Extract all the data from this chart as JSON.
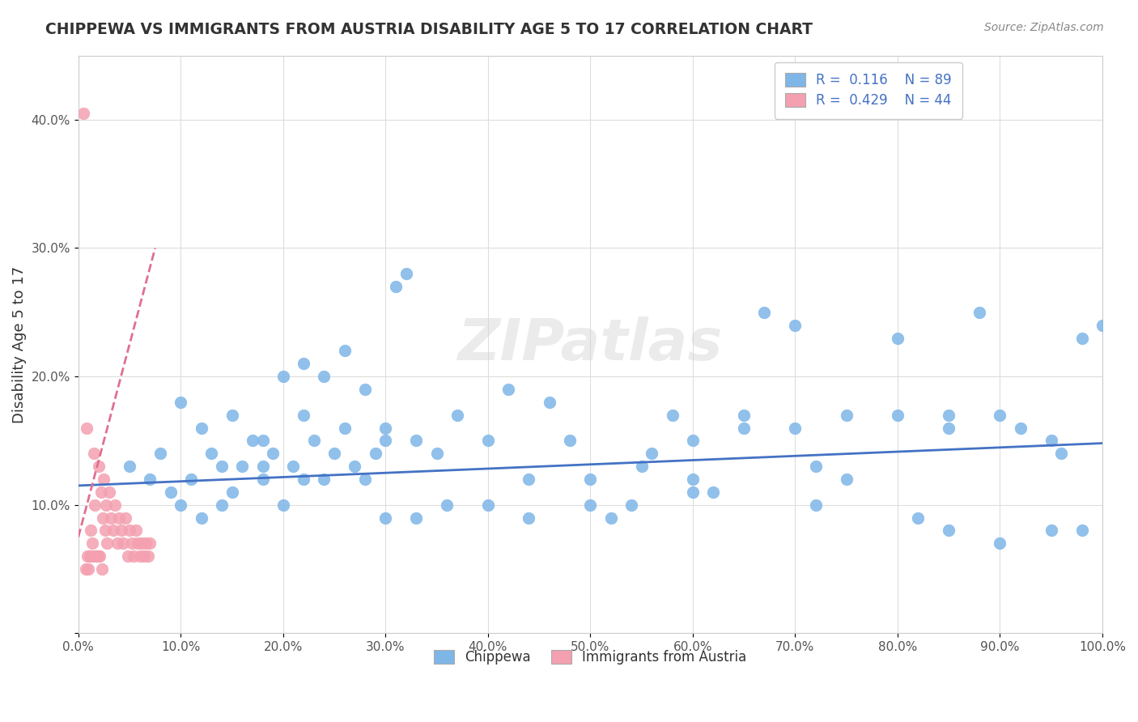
{
  "title": "CHIPPEWA VS IMMIGRANTS FROM AUSTRIA DISABILITY AGE 5 TO 17 CORRELATION CHART",
  "source": "Source: ZipAtlas.com",
  "ylabel": "Disability Age 5 to 17",
  "xlim": [
    0,
    1.0
  ],
  "ylim": [
    0,
    0.45
  ],
  "xticks": [
    0.0,
    0.1,
    0.2,
    0.3,
    0.4,
    0.5,
    0.6,
    0.7,
    0.8,
    0.9,
    1.0
  ],
  "xticklabels": [
    "0.0%",
    "10.0%",
    "20.0%",
    "30.0%",
    "40.0%",
    "50.0%",
    "60.0%",
    "70.0%",
    "80.0%",
    "90.0%",
    "100.0%"
  ],
  "yticks": [
    0.0,
    0.1,
    0.2,
    0.3,
    0.4
  ],
  "yticklabels": [
    "",
    "10.0%",
    "20.0%",
    "30.0%",
    "40.0%"
  ],
  "color_blue": "#7EB6E8",
  "color_pink": "#F4A0B0",
  "line_blue": "#4472C4",
  "line_pink": "#E07090",
  "watermark": "ZIPatlas",
  "blue_x": [
    0.05,
    0.07,
    0.08,
    0.09,
    0.1,
    0.11,
    0.12,
    0.13,
    0.14,
    0.15,
    0.16,
    0.17,
    0.18,
    0.19,
    0.2,
    0.21,
    0.22,
    0.23,
    0.24,
    0.25,
    0.26,
    0.27,
    0.28,
    0.29,
    0.3,
    0.31,
    0.32,
    0.33,
    0.35,
    0.37,
    0.4,
    0.42,
    0.44,
    0.46,
    0.5,
    0.52,
    0.54,
    0.56,
    0.58,
    0.6,
    0.62,
    0.65,
    0.67,
    0.7,
    0.72,
    0.75,
    0.8,
    0.82,
    0.85,
    0.88,
    0.9,
    0.92,
    0.95,
    0.98,
    1.0,
    0.2,
    0.22,
    0.24,
    0.28,
    0.3,
    0.33,
    0.4,
    0.44,
    0.5,
    0.55,
    0.6,
    0.65,
    0.7,
    0.75,
    0.8,
    0.85,
    0.9,
    0.95,
    0.98,
    0.1,
    0.12,
    0.14,
    0.18,
    0.26,
    0.36,
    0.48,
    0.6,
    0.72,
    0.85,
    0.96,
    0.15,
    0.18,
    0.22,
    0.3
  ],
  "blue_y": [
    0.13,
    0.12,
    0.14,
    0.11,
    0.1,
    0.12,
    0.09,
    0.14,
    0.1,
    0.11,
    0.13,
    0.15,
    0.12,
    0.14,
    0.1,
    0.13,
    0.17,
    0.15,
    0.12,
    0.14,
    0.16,
    0.13,
    0.12,
    0.14,
    0.16,
    0.27,
    0.28,
    0.15,
    0.14,
    0.17,
    0.15,
    0.19,
    0.12,
    0.18,
    0.1,
    0.09,
    0.1,
    0.14,
    0.17,
    0.12,
    0.11,
    0.16,
    0.25,
    0.24,
    0.13,
    0.17,
    0.23,
    0.09,
    0.17,
    0.25,
    0.17,
    0.16,
    0.15,
    0.08,
    0.24,
    0.2,
    0.21,
    0.2,
    0.19,
    0.15,
    0.09,
    0.1,
    0.09,
    0.12,
    0.13,
    0.15,
    0.17,
    0.16,
    0.12,
    0.17,
    0.08,
    0.07,
    0.08,
    0.23,
    0.18,
    0.16,
    0.13,
    0.15,
    0.22,
    0.1,
    0.15,
    0.11,
    0.1,
    0.16,
    0.14,
    0.17,
    0.13,
    0.12,
    0.09
  ],
  "pink_x": [
    0.005,
    0.007,
    0.008,
    0.009,
    0.01,
    0.011,
    0.012,
    0.013,
    0.014,
    0.015,
    0.016,
    0.017,
    0.018,
    0.019,
    0.02,
    0.021,
    0.022,
    0.023,
    0.024,
    0.025,
    0.026,
    0.027,
    0.028,
    0.03,
    0.032,
    0.034,
    0.036,
    0.038,
    0.04,
    0.042,
    0.044,
    0.046,
    0.048,
    0.05,
    0.052,
    0.054,
    0.056,
    0.058,
    0.06,
    0.062,
    0.064,
    0.066,
    0.068,
    0.07
  ],
  "pink_y": [
    0.405,
    0.05,
    0.16,
    0.06,
    0.05,
    0.06,
    0.08,
    0.06,
    0.07,
    0.14,
    0.1,
    0.06,
    0.06,
    0.06,
    0.13,
    0.06,
    0.11,
    0.05,
    0.09,
    0.12,
    0.08,
    0.1,
    0.07,
    0.11,
    0.09,
    0.08,
    0.1,
    0.07,
    0.09,
    0.08,
    0.07,
    0.09,
    0.06,
    0.08,
    0.07,
    0.06,
    0.08,
    0.07,
    0.06,
    0.07,
    0.06,
    0.07,
    0.06,
    0.07
  ],
  "blue_trend_x": [
    0.0,
    1.0
  ],
  "blue_trend_y": [
    0.115,
    0.148
  ],
  "pink_trend_x": [
    0.0,
    0.075
  ],
  "pink_trend_y": [
    0.075,
    0.3
  ]
}
